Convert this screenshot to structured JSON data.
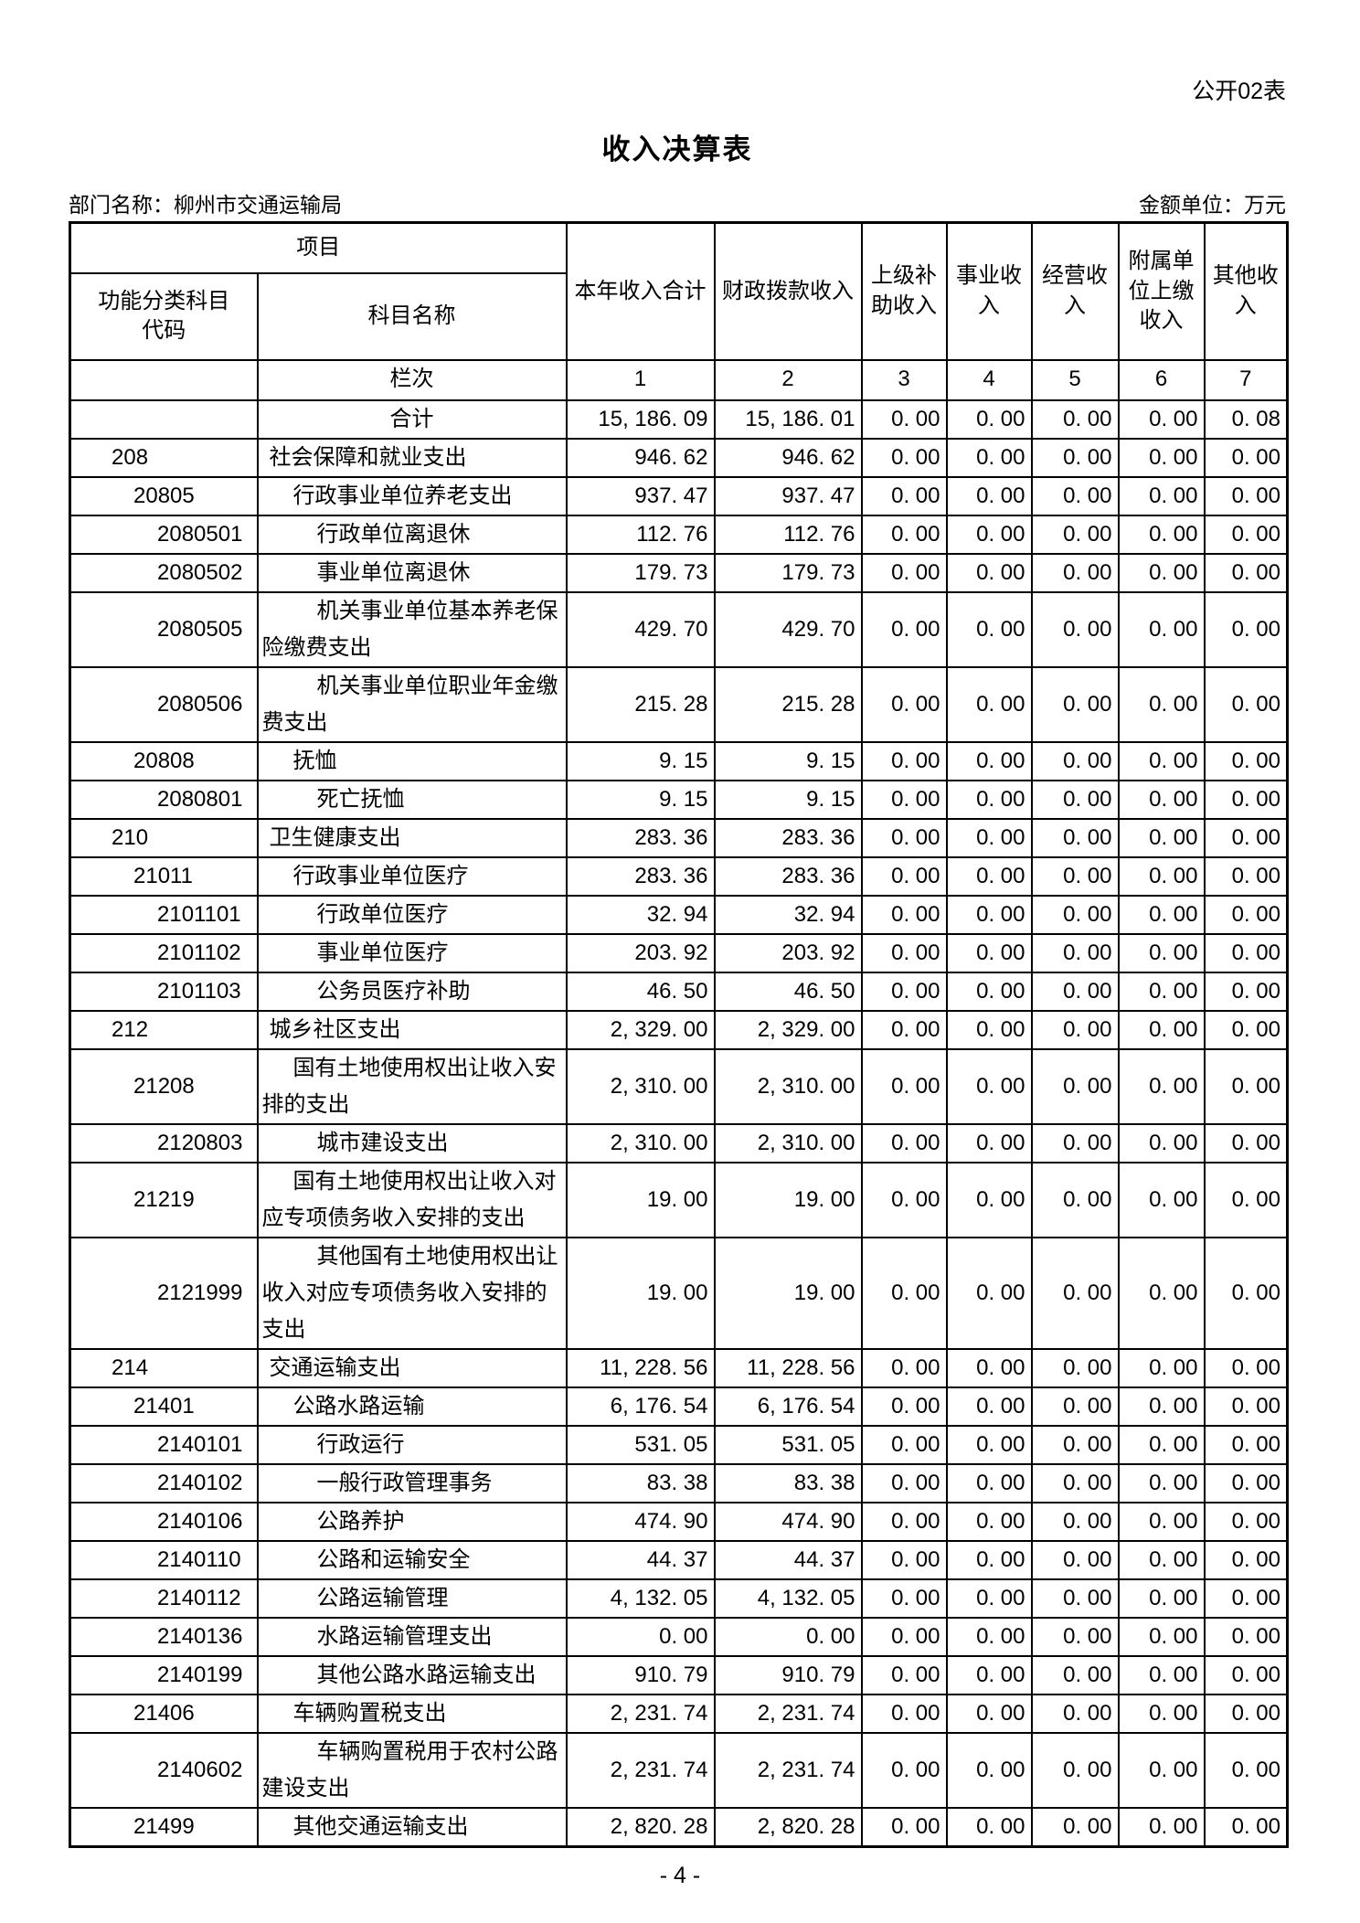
{
  "page": {
    "doc_label": "公开02表",
    "title": "收入决算表",
    "dept_label": "部门名称：柳州市交通运输局",
    "unit_label": "金额单位：万元",
    "page_number": "- 4 -"
  },
  "table": {
    "header": {
      "project": "项目",
      "code_label": "功能分类科目代码",
      "subject_label": "科目名称",
      "amount_cols": [
        "本年收入合计",
        "财政拨款收入",
        "上级补助收入",
        "事业收入",
        "经营收入",
        "附属单位上缴收入",
        "其他收入"
      ],
      "lanci_label": "栏次",
      "col_nums": [
        "1",
        "2",
        "3",
        "4",
        "5",
        "6",
        "7"
      ]
    },
    "rows": [
      {
        "code": "",
        "name": "合计",
        "level": 0,
        "center": true,
        "values": [
          "15, 186. 09",
          "15, 186. 01",
          "0. 00",
          "0. 00",
          "0. 00",
          "0. 00",
          "0. 08"
        ]
      },
      {
        "code": "208",
        "name": "社会保障和就业支出",
        "level": 1,
        "values": [
          "946. 62",
          "946. 62",
          "0. 00",
          "0. 00",
          "0. 00",
          "0. 00",
          "0. 00"
        ]
      },
      {
        "code": "20805",
        "name": "行政事业单位养老支出",
        "level": 2,
        "values": [
          "937. 47",
          "937. 47",
          "0. 00",
          "0. 00",
          "0. 00",
          "0. 00",
          "0. 00"
        ]
      },
      {
        "code": "2080501",
        "name": "行政单位离退休",
        "level": 3,
        "values": [
          "112. 76",
          "112. 76",
          "0. 00",
          "0. 00",
          "0. 00",
          "0. 00",
          "0. 00"
        ]
      },
      {
        "code": "2080502",
        "name": "事业单位离退休",
        "level": 3,
        "values": [
          "179. 73",
          "179. 73",
          "0. 00",
          "0. 00",
          "0. 00",
          "0. 00",
          "0. 00"
        ]
      },
      {
        "code": "2080505",
        "name": "机关事业单位基本养老保险缴费支出",
        "level": 3,
        "values": [
          "429. 70",
          "429. 70",
          "0. 00",
          "0. 00",
          "0. 00",
          "0. 00",
          "0. 00"
        ]
      },
      {
        "code": "2080506",
        "name": "机关事业单位职业年金缴费支出",
        "level": 3,
        "values": [
          "215. 28",
          "215. 28",
          "0. 00",
          "0. 00",
          "0. 00",
          "0. 00",
          "0. 00"
        ]
      },
      {
        "code": "20808",
        "name": "抚恤",
        "level": 2,
        "values": [
          "9. 15",
          "9. 15",
          "0. 00",
          "0. 00",
          "0. 00",
          "0. 00",
          "0. 00"
        ]
      },
      {
        "code": "2080801",
        "name": "死亡抚恤",
        "level": 3,
        "values": [
          "9. 15",
          "9. 15",
          "0. 00",
          "0. 00",
          "0. 00",
          "0. 00",
          "0. 00"
        ]
      },
      {
        "code": "210",
        "name": "卫生健康支出",
        "level": 1,
        "values": [
          "283. 36",
          "283. 36",
          "0. 00",
          "0. 00",
          "0. 00",
          "0. 00",
          "0. 00"
        ]
      },
      {
        "code": "21011",
        "name": "行政事业单位医疗",
        "level": 2,
        "values": [
          "283. 36",
          "283. 36",
          "0. 00",
          "0. 00",
          "0. 00",
          "0. 00",
          "0. 00"
        ]
      },
      {
        "code": "2101101",
        "name": "行政单位医疗",
        "level": 3,
        "values": [
          "32. 94",
          "32. 94",
          "0. 00",
          "0. 00",
          "0. 00",
          "0. 00",
          "0. 00"
        ]
      },
      {
        "code": "2101102",
        "name": "事业单位医疗",
        "level": 3,
        "values": [
          "203. 92",
          "203. 92",
          "0. 00",
          "0. 00",
          "0. 00",
          "0. 00",
          "0. 00"
        ]
      },
      {
        "code": "2101103",
        "name": "公务员医疗补助",
        "level": 3,
        "values": [
          "46. 50",
          "46. 50",
          "0. 00",
          "0. 00",
          "0. 00",
          "0. 00",
          "0. 00"
        ]
      },
      {
        "code": "212",
        "name": "城乡社区支出",
        "level": 1,
        "values": [
          "2, 329. 00",
          "2, 329. 00",
          "0. 00",
          "0. 00",
          "0. 00",
          "0. 00",
          "0. 00"
        ]
      },
      {
        "code": "21208",
        "name": "国有土地使用权出让收入安排的支出",
        "level": 2,
        "values": [
          "2, 310. 00",
          "2, 310. 00",
          "0. 00",
          "0. 00",
          "0. 00",
          "0. 00",
          "0. 00"
        ]
      },
      {
        "code": "2120803",
        "name": "城市建设支出",
        "level": 3,
        "values": [
          "2, 310. 00",
          "2, 310. 00",
          "0. 00",
          "0. 00",
          "0. 00",
          "0. 00",
          "0. 00"
        ]
      },
      {
        "code": "21219",
        "name": "国有土地使用权出让收入对应专项债务收入安排的支出",
        "level": 2,
        "values": [
          "19. 00",
          "19. 00",
          "0. 00",
          "0. 00",
          "0. 00",
          "0. 00",
          "0. 00"
        ]
      },
      {
        "code": "2121999",
        "name": "其他国有土地使用权出让收入对应专项债务收入安排的支出",
        "level": 3,
        "values": [
          "19. 00",
          "19. 00",
          "0. 00",
          "0. 00",
          "0. 00",
          "0. 00",
          "0. 00"
        ]
      },
      {
        "code": "214",
        "name": "交通运输支出",
        "level": 1,
        "values": [
          "11, 228. 56",
          "11, 228. 56",
          "0. 00",
          "0. 00",
          "0. 00",
          "0. 00",
          "0. 00"
        ]
      },
      {
        "code": "21401",
        "name": "公路水路运输",
        "level": 2,
        "values": [
          "6, 176. 54",
          "6, 176. 54",
          "0. 00",
          "0. 00",
          "0. 00",
          "0. 00",
          "0. 00"
        ]
      },
      {
        "code": "2140101",
        "name": "行政运行",
        "level": 3,
        "values": [
          "531. 05",
          "531. 05",
          "0. 00",
          "0. 00",
          "0. 00",
          "0. 00",
          "0. 00"
        ]
      },
      {
        "code": "2140102",
        "name": "一般行政管理事务",
        "level": 3,
        "values": [
          "83. 38",
          "83. 38",
          "0. 00",
          "0. 00",
          "0. 00",
          "0. 00",
          "0. 00"
        ]
      },
      {
        "code": "2140106",
        "name": "公路养护",
        "level": 3,
        "values": [
          "474. 90",
          "474. 90",
          "0. 00",
          "0. 00",
          "0. 00",
          "0. 00",
          "0. 00"
        ]
      },
      {
        "code": "2140110",
        "name": "公路和运输安全",
        "level": 3,
        "values": [
          "44. 37",
          "44. 37",
          "0. 00",
          "0. 00",
          "0. 00",
          "0. 00",
          "0. 00"
        ]
      },
      {
        "code": "2140112",
        "name": "公路运输管理",
        "level": 3,
        "values": [
          "4, 132. 05",
          "4, 132. 05",
          "0. 00",
          "0. 00",
          "0. 00",
          "0. 00",
          "0. 00"
        ]
      },
      {
        "code": "2140136",
        "name": "水路运输管理支出",
        "level": 3,
        "values": [
          "0. 00",
          "0. 00",
          "0. 00",
          "0. 00",
          "0. 00",
          "0. 00",
          "0. 00"
        ]
      },
      {
        "code": "2140199",
        "name": "其他公路水路运输支出",
        "level": 3,
        "values": [
          "910. 79",
          "910. 79",
          "0. 00",
          "0. 00",
          "0. 00",
          "0. 00",
          "0. 00"
        ]
      },
      {
        "code": "21406",
        "name": "车辆购置税支出",
        "level": 2,
        "values": [
          "2, 231. 74",
          "2, 231. 74",
          "0. 00",
          "0. 00",
          "0. 00",
          "0. 00",
          "0. 00"
        ]
      },
      {
        "code": "2140602",
        "name": "车辆购置税用于农村公路建设支出",
        "level": 3,
        "values": [
          "2, 231. 74",
          "2, 231. 74",
          "0. 00",
          "0. 00",
          "0. 00",
          "0. 00",
          "0. 00"
        ]
      },
      {
        "code": "21499",
        "name": "其他交通运输支出",
        "level": 2,
        "values": [
          "2, 820. 28",
          "2, 820. 28",
          "0. 00",
          "0. 00",
          "0. 00",
          "0. 00",
          "0. 00"
        ]
      }
    ]
  }
}
